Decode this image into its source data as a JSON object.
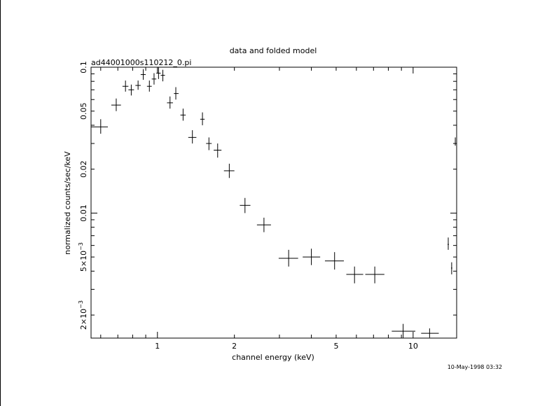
{
  "chart_data": {
    "type": "scatter",
    "title": "data and folded model",
    "subtitle": "ad44001000s110212_0.pi",
    "xlabel": "channel energy (keV)",
    "ylabel": "normalized counts/sec/keV",
    "timestamp": "10-May-1998 03:32",
    "x_scale": "log",
    "y_scale": "log",
    "xlim": [
      0.55,
      14.8
    ],
    "ylim": [
      0.00139,
      0.1
    ],
    "grid": false,
    "x_tick_labels": [
      {
        "value": 1,
        "label": "1"
      },
      {
        "value": 2,
        "label": "2"
      },
      {
        "value": 5,
        "label": "5"
      },
      {
        "value": 10,
        "label": "10"
      }
    ],
    "y_tick_labels": [
      {
        "value": 0.1,
        "label": "0.1"
      },
      {
        "value": 0.05,
        "label": "0.05"
      },
      {
        "value": 0.02,
        "label": "0.02"
      },
      {
        "value": 0.01,
        "label": "0.01"
      },
      {
        "value": 0.005,
        "label": "5×10",
        "exp": "−3"
      },
      {
        "value": 0.002,
        "label": "2×10",
        "exp": "−3"
      }
    ],
    "series": [
      {
        "points": [
          {
            "x": 0.6,
            "xlo": 0.55,
            "xhi": 0.64,
            "y": 0.039,
            "ylo": 0.035,
            "yhi": 0.044
          },
          {
            "x": 0.69,
            "xlo": 0.66,
            "xhi": 0.72,
            "y": 0.055,
            "ylo": 0.05,
            "yhi": 0.061
          },
          {
            "x": 0.75,
            "xlo": 0.73,
            "xhi": 0.77,
            "y": 0.074,
            "ylo": 0.068,
            "yhi": 0.081
          },
          {
            "x": 0.79,
            "xlo": 0.77,
            "xhi": 0.81,
            "y": 0.07,
            "ylo": 0.064,
            "yhi": 0.076
          },
          {
            "x": 0.84,
            "xlo": 0.82,
            "xhi": 0.86,
            "y": 0.075,
            "ylo": 0.07,
            "yhi": 0.081
          },
          {
            "x": 0.88,
            "xlo": 0.86,
            "xhi": 0.9,
            "y": 0.089,
            "ylo": 0.082,
            "yhi": 0.097
          },
          {
            "x": 0.93,
            "xlo": 0.91,
            "xhi": 0.95,
            "y": 0.074,
            "ylo": 0.068,
            "yhi": 0.081
          },
          {
            "x": 0.97,
            "xlo": 0.95,
            "xhi": 0.99,
            "y": 0.083,
            "ylo": 0.076,
            "yhi": 0.091
          },
          {
            "x": 1.01,
            "xlo": 0.99,
            "xhi": 1.03,
            "y": 0.091,
            "ylo": 0.083,
            "yhi": 0.1
          },
          {
            "x": 1.05,
            "xlo": 1.03,
            "xhi": 1.07,
            "y": 0.088,
            "ylo": 0.08,
            "yhi": 0.096
          },
          {
            "x": 1.12,
            "xlo": 1.09,
            "xhi": 1.15,
            "y": 0.057,
            "ylo": 0.052,
            "yhi": 0.063
          },
          {
            "x": 1.18,
            "xlo": 1.16,
            "xhi": 1.21,
            "y": 0.066,
            "ylo": 0.06,
            "yhi": 0.073
          },
          {
            "x": 1.26,
            "xlo": 1.23,
            "xhi": 1.29,
            "y": 0.047,
            "ylo": 0.043,
            "yhi": 0.052
          },
          {
            "x": 1.37,
            "xlo": 1.32,
            "xhi": 1.42,
            "y": 0.033,
            "ylo": 0.03,
            "yhi": 0.037
          },
          {
            "x": 1.5,
            "xlo": 1.47,
            "xhi": 1.53,
            "y": 0.044,
            "ylo": 0.04,
            "yhi": 0.049
          },
          {
            "x": 1.59,
            "xlo": 1.55,
            "xhi": 1.63,
            "y": 0.03,
            "ylo": 0.027,
            "yhi": 0.033
          },
          {
            "x": 1.72,
            "xlo": 1.66,
            "xhi": 1.78,
            "y": 0.027,
            "ylo": 0.024,
            "yhi": 0.03
          },
          {
            "x": 1.91,
            "xlo": 1.82,
            "xhi": 2.0,
            "y": 0.0195,
            "ylo": 0.0174,
            "yhi": 0.0218
          },
          {
            "x": 2.2,
            "xlo": 2.1,
            "xhi": 2.31,
            "y": 0.0113,
            "ylo": 0.01,
            "yhi": 0.0127
          },
          {
            "x": 2.61,
            "xlo": 2.45,
            "xhi": 2.78,
            "y": 0.0083,
            "ylo": 0.0074,
            "yhi": 0.0093
          },
          {
            "x": 3.26,
            "xlo": 2.98,
            "xhi": 3.55,
            "y": 0.0049,
            "ylo": 0.0043,
            "yhi": 0.0056
          },
          {
            "x": 4.0,
            "xlo": 3.7,
            "xhi": 4.33,
            "y": 0.005,
            "ylo": 0.0044,
            "yhi": 0.0057
          },
          {
            "x": 4.93,
            "xlo": 4.52,
            "xhi": 5.36,
            "y": 0.0047,
            "ylo": 0.0041,
            "yhi": 0.0054
          },
          {
            "x": 5.9,
            "xlo": 5.48,
            "xhi": 6.38,
            "y": 0.0038,
            "ylo": 0.0033,
            "yhi": 0.0043
          },
          {
            "x": 7.08,
            "xlo": 6.5,
            "xhi": 7.72,
            "y": 0.0038,
            "ylo": 0.0033,
            "yhi": 0.0043
          },
          {
            "x": 9.14,
            "xlo": 8.25,
            "xhi": 10.2,
            "y": 0.00155,
            "ylo": 0.00139,
            "yhi": 0.00174
          },
          {
            "x": 11.6,
            "xlo": 10.75,
            "xhi": 12.6,
            "y": 0.0015,
            "ylo": 0.0014,
            "yhi": 0.00162
          },
          {
            "x": 13.72,
            "xlo": 13.64,
            "xhi": 13.8,
            "y": 0.0061,
            "ylo": 0.0056,
            "yhi": 0.0068
          },
          {
            "x": 14.15,
            "xlo": 14.07,
            "xhi": 14.23,
            "y": 0.0042,
            "ylo": 0.0038,
            "yhi": 0.0046
          },
          {
            "x": 14.62,
            "xlo": 14.58,
            "xhi": 14.66,
            "y": 0.031,
            "ylo": 0.029,
            "yhi": 0.033
          }
        ]
      }
    ]
  }
}
